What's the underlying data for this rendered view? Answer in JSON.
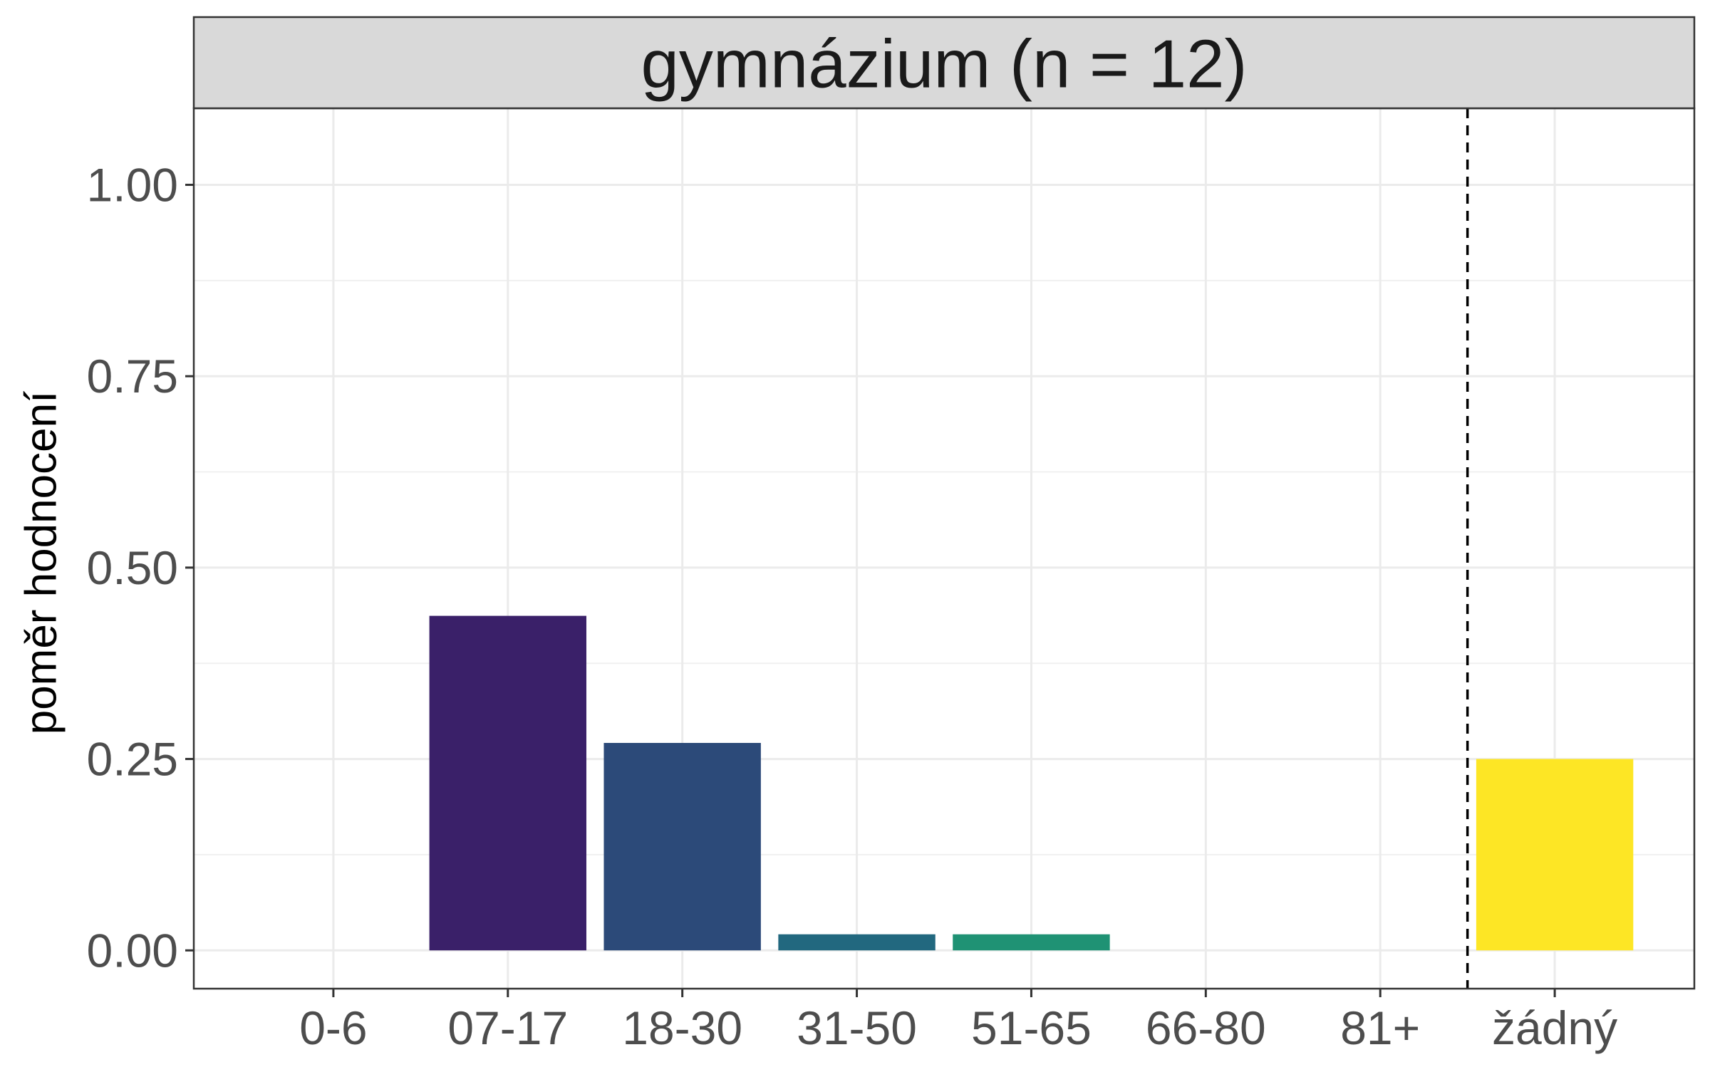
{
  "chart_data": {
    "type": "bar",
    "title": "",
    "facet_label": "gymnázium (n = 12)",
    "xlabel": "",
    "ylabel": "poměr hodnocení",
    "categories": [
      "0-6",
      "07-17",
      "18-30",
      "31-50",
      "51-65",
      "66-80",
      "81+",
      "žádný"
    ],
    "values": [
      0,
      0.437,
      0.271,
      0.021,
      0.021,
      0,
      0,
      0.25
    ],
    "colors": [
      "#440154",
      "#3A2069",
      "#2C4A79",
      "#22687F",
      "#1F9274",
      "#5BC862",
      "#B3DC2B",
      "#FDE625"
    ],
    "ylim": [
      -0.05,
      1.1
    ],
    "yticks": [
      0,
      0.25,
      0.5,
      0.75,
      1.0
    ],
    "ytick_labels": [
      "0.00",
      "0.25",
      "0.50",
      "0.75",
      "1.00"
    ],
    "reference_line": {
      "between": [
        "81+",
        "žádný"
      ],
      "style": "dashed",
      "color": "#000000"
    },
    "grid": true,
    "legend": "none"
  }
}
